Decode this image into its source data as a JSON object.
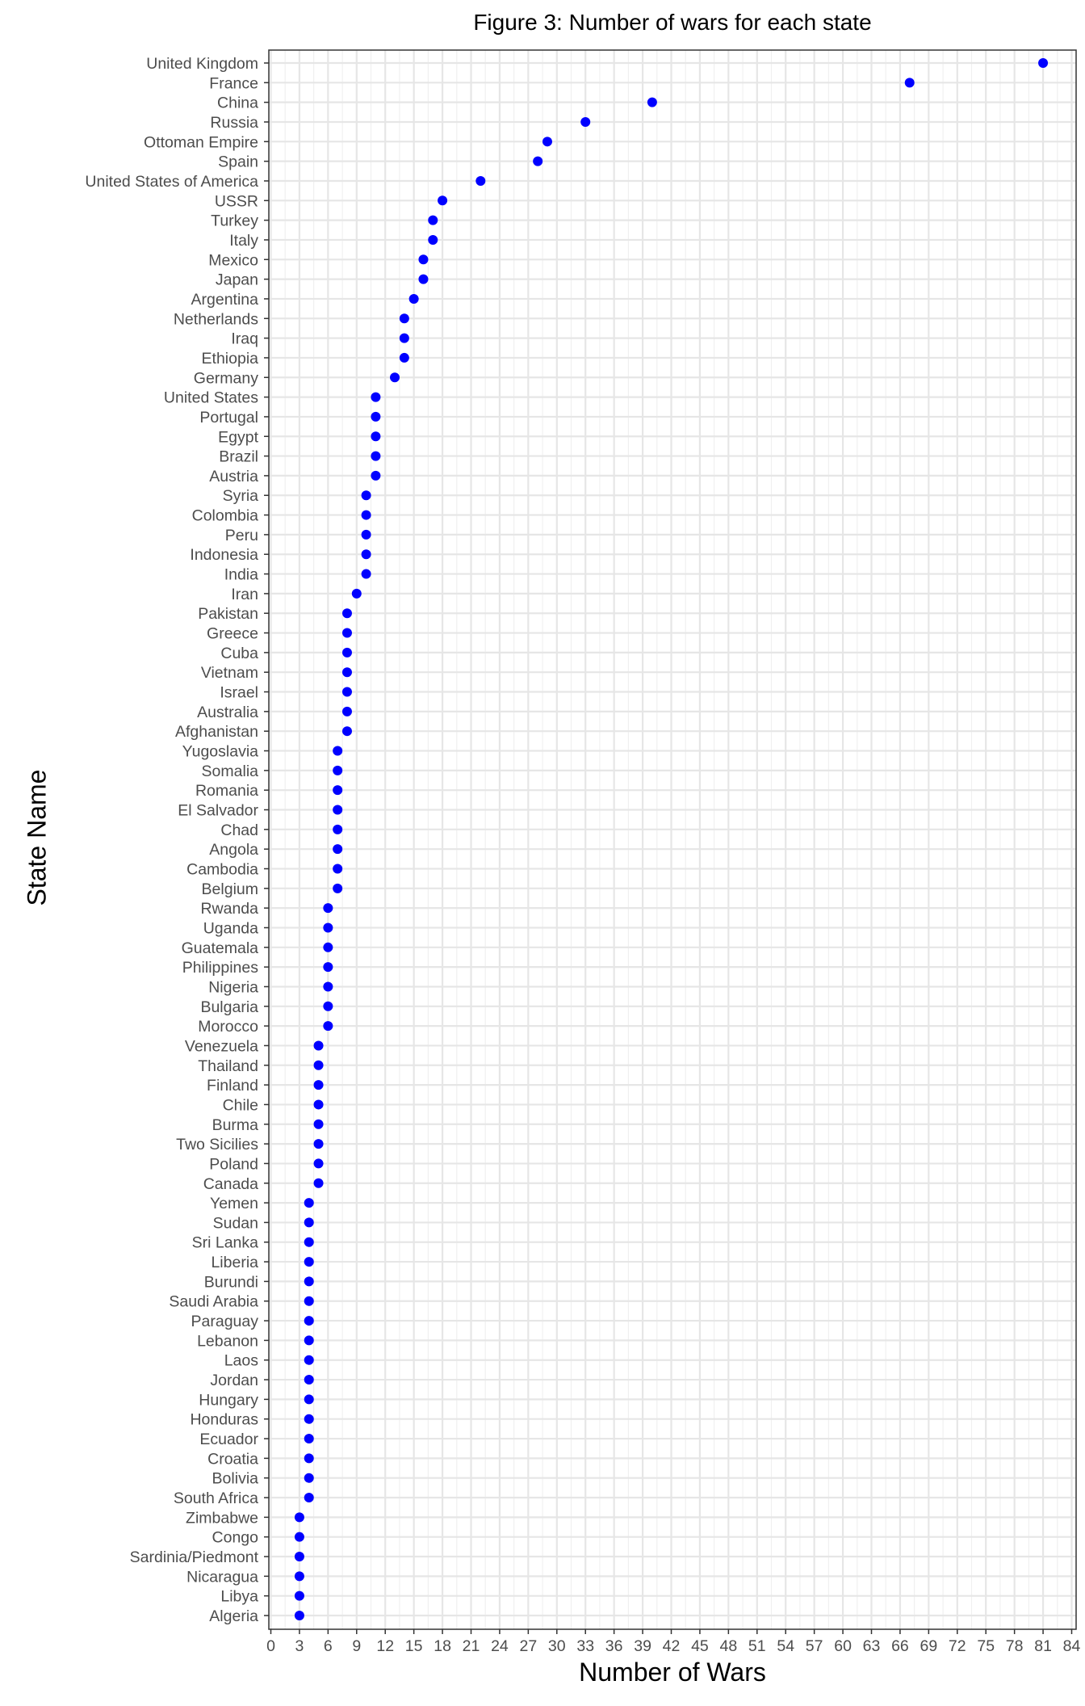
{
  "chart_data": {
    "type": "scatter",
    "title": "Figure 3: Number of wars for each state",
    "xlabel": "Number of Wars",
    "ylabel": "State Name",
    "xlim": [
      0,
      85
    ],
    "x_ticks": [
      0,
      3,
      6,
      9,
      12,
      15,
      18,
      21,
      24,
      27,
      30,
      33,
      36,
      39,
      42,
      45,
      48,
      51,
      54,
      57,
      60,
      63,
      66,
      69,
      72,
      75,
      78,
      81,
      84
    ],
    "grid": true,
    "point_color": "#0000ff",
    "categories": [
      "United Kingdom",
      "France",
      "China",
      "Russia",
      "Ottoman Empire",
      "Spain",
      "United States of America",
      "USSR",
      "Turkey",
      "Italy",
      "Mexico",
      "Japan",
      "Argentina",
      "Netherlands",
      "Iraq",
      "Ethiopia",
      "Germany",
      "United States",
      "Portugal",
      "Egypt",
      "Brazil",
      "Austria",
      "Syria",
      "Colombia",
      "Peru",
      "Indonesia",
      "India",
      "Iran",
      "Pakistan",
      "Greece",
      "Cuba",
      "Vietnam",
      "Israel",
      "Australia",
      "Afghanistan",
      "Yugoslavia",
      "Somalia",
      "Romania",
      "El Salvador",
      "Chad",
      "Angola",
      "Cambodia",
      "Belgium",
      "Rwanda",
      "Uganda",
      "Guatemala",
      "Philippines",
      "Nigeria",
      "Bulgaria",
      "Morocco",
      "Venezuela",
      "Thailand",
      "Finland",
      "Chile",
      "Burma",
      "Two Sicilies",
      "Poland",
      "Canada",
      "Yemen",
      "Sudan",
      "Sri Lanka",
      "Liberia",
      "Burundi",
      "Saudi Arabia",
      "Paraguay",
      "Lebanon",
      "Laos",
      "Jordan",
      "Hungary",
      "Honduras",
      "Ecuador",
      "Croatia",
      "Bolivia",
      "South Africa",
      "Zimbabwe",
      "Congo",
      "Sardinia/Piedmont",
      "Nicaragua",
      "Libya",
      "Algeria"
    ],
    "values": [
      81,
      67,
      40,
      33,
      29,
      28,
      22,
      18,
      17,
      17,
      16,
      16,
      15,
      14,
      14,
      14,
      13,
      11,
      11,
      11,
      11,
      11,
      10,
      10,
      10,
      10,
      10,
      9,
      8,
      8,
      8,
      8,
      8,
      8,
      8,
      7,
      7,
      7,
      7,
      7,
      7,
      7,
      7,
      6,
      6,
      6,
      6,
      6,
      6,
      6,
      5,
      5,
      5,
      5,
      5,
      5,
      5,
      5,
      4,
      4,
      4,
      4,
      4,
      4,
      4,
      4,
      4,
      4,
      4,
      4,
      4,
      4,
      4,
      4,
      3,
      3,
      3,
      3,
      3,
      3
    ]
  }
}
